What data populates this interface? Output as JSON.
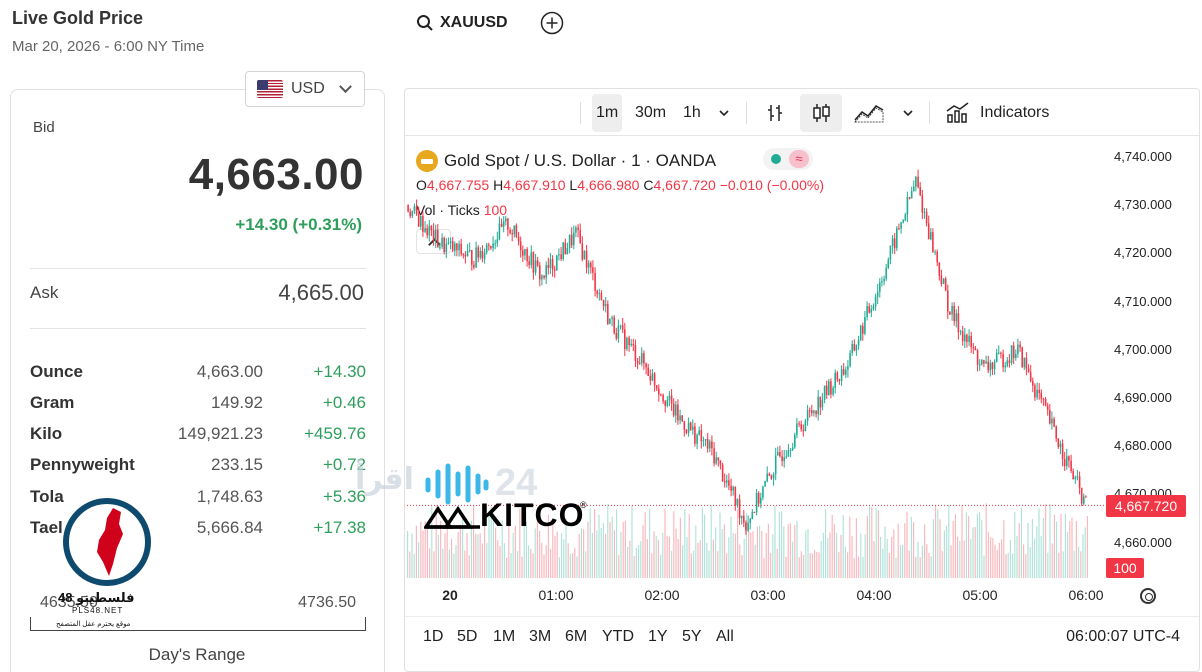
{
  "header": {
    "title": "Live Gold Price",
    "subtitle": "Mar 20, 2026 - 6:00 NY Time"
  },
  "currency": {
    "selected": "USD"
  },
  "quote": {
    "bid_label": "Bid",
    "bid": "4,663.00",
    "change": "+14.30 (+0.31%)",
    "ask_label": "Ask",
    "ask": "4,665.00"
  },
  "units": [
    {
      "name": "Ounce",
      "price": "4,663.00",
      "change": "+14.30"
    },
    {
      "name": "Gram",
      "price": "149.92",
      "change": "+0.46"
    },
    {
      "name": "Kilo",
      "price": "149,921.23",
      "change": "+459.76"
    },
    {
      "name": "Pennyweight",
      "price": "233.15",
      "change": "+0.72"
    },
    {
      "name": "Tola",
      "price": "1,748.63",
      "change": "+5.36"
    },
    {
      "name": "Tael",
      "price": "5,666.84",
      "change": "+17.38"
    }
  ],
  "day_range": {
    "low": "4635.50",
    "high": "4736.50",
    "label": "Day's Range"
  },
  "overlay_logo": {
    "name": "فلسطينو 48",
    "domain": "PLS48.NET",
    "tagline": "موقع يحترم عقل المتصفح"
  },
  "watermark": {
    "brand": "KITCO",
    "arabic": "اقرأ",
    "number": "24"
  },
  "toolbar": {
    "symbol": "XAUUSD",
    "intervals": [
      "1m",
      "30m",
      "1h"
    ],
    "active_interval": "1m",
    "indicators_label": "Indicators"
  },
  "legend": {
    "title": "Gold Spot / U.S. Dollar · 1 · OANDA",
    "ohlc": {
      "o_key": "O",
      "o": "4,667.755",
      "h_key": "H",
      "h": "4,667.910",
      "l_key": "L",
      "l": "4,666.980",
      "c_key": "C",
      "c": "4,667.720",
      "chg": "−0.010 (−0.00%)"
    },
    "vol_label": "Vol · Ticks",
    "vol": "100"
  },
  "price_axis": [
    "4,740.000",
    "4,730.000",
    "4,720.000",
    "4,710.000",
    "4,700.000",
    "4,690.000",
    "4,680.000",
    "4,670.000",
    "4,660.000"
  ],
  "current_price_tag": "4,667.720",
  "volume_tag": "100",
  "time_axis": [
    "20",
    "01:00",
    "02:00",
    "03:00",
    "04:00",
    "05:00",
    "06:00"
  ],
  "range_buttons": [
    "1D",
    "5D",
    "1M",
    "3M",
    "6M",
    "YTD",
    "1Y",
    "5Y",
    "All"
  ],
  "clock": "06:00:07 UTC-4",
  "colors": {
    "up": "#22ab94",
    "down": "#f23645",
    "positive_text": "#2e9e5b",
    "gold": "#e7a81e"
  },
  "chart_data": {
    "type": "line",
    "title": "Gold Spot / U.S. Dollar · 1 · OANDA",
    "x": [
      "00:00",
      "00:15",
      "00:30",
      "00:45",
      "01:00",
      "01:20",
      "01:40",
      "02:00",
      "02:20",
      "02:40",
      "03:00",
      "03:20",
      "03:40",
      "04:00",
      "04:20",
      "04:30",
      "04:45",
      "05:00",
      "05:20",
      "05:40",
      "06:00"
    ],
    "series": [
      {
        "values": [
          4730,
          4722,
          4719,
          4726,
          4715,
          4724,
          4706,
          4697,
          4686,
          4679,
          4664,
          4678,
          4688,
          4697,
          4715,
          4735,
          4708,
          4696,
          4700,
          4684,
          4667.72
        ]
      }
    ],
    "ylim": [
      4655,
      4742
    ],
    "grid": false
  }
}
